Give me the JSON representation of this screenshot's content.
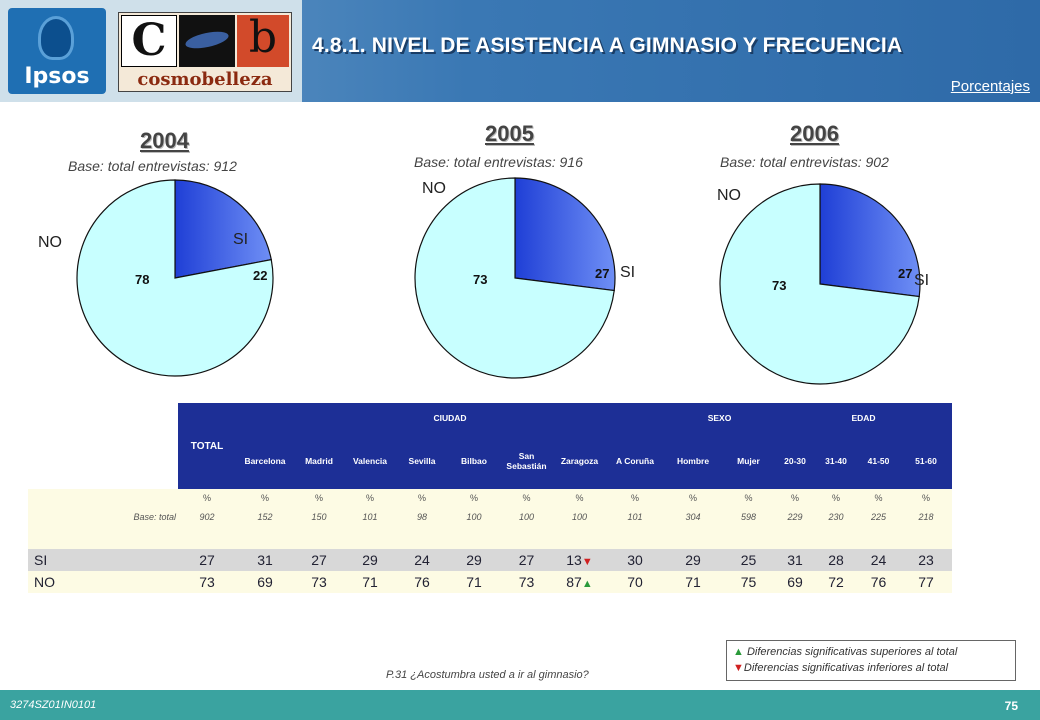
{
  "header": {
    "title": "4.8.1. NIVEL DE ASISTENCIA A GIMNASIO Y FRECUENCIA",
    "unit_label": "Porcentajes",
    "logo_ipsos": "Ipsos",
    "logo_cb_c": "C",
    "logo_cb_b": "b",
    "logo_cosmobelleza": "cosmobelleza"
  },
  "chart_data": [
    {
      "type": "pie",
      "title": "2004",
      "subtitle": "Base: total entrevistas: 912",
      "slices": [
        {
          "label": "SI",
          "value": 22,
          "color": "#2f55e8"
        },
        {
          "label": "NO",
          "value": 78,
          "color": "#c8ffff"
        }
      ]
    },
    {
      "type": "pie",
      "title": "2005",
      "subtitle": "Base: total entrevistas: 916",
      "slices": [
        {
          "label": "SI",
          "value": 27,
          "color": "#2f55e8"
        },
        {
          "label": "NO",
          "value": 73,
          "color": "#c8ffff"
        }
      ]
    },
    {
      "type": "pie",
      "title": "2006",
      "subtitle": "Base: total entrevistas: 902",
      "slices": [
        {
          "label": "SI",
          "value": 27,
          "color": "#2f55e8"
        },
        {
          "label": "NO",
          "value": 73,
          "color": "#c8ffff"
        }
      ]
    },
    {
      "type": "table",
      "groups": [
        {
          "label": "TOTAL"
        },
        {
          "label": "CIUDAD"
        },
        {
          "label": "SEXO"
        },
        {
          "label": "EDAD"
        }
      ],
      "columns": [
        "Barcelona",
        "Madrid",
        "Valencia",
        "Sevilla",
        "Bilbao",
        "San Sebastián",
        "Zaragoza",
        "A Coruña",
        "Hombre",
        "Mujer",
        "20-30",
        "31-40",
        "41-50",
        "51-60"
      ],
      "pct_row": [
        "%",
        "%",
        "%",
        "%",
        "%",
        "%",
        "%",
        "%",
        "%",
        "%",
        "%",
        "%",
        "%",
        "%",
        "%"
      ],
      "base_label": "Base: total",
      "base_values": [
        "902",
        "152",
        "150",
        "101",
        "98",
        "100",
        "100",
        "100",
        "101",
        "304",
        "598",
        "229",
        "230",
        "225",
        "218"
      ],
      "rows": [
        {
          "label": "SI",
          "values": [
            "27",
            "31",
            "27",
            "29",
            "24",
            "29",
            "27",
            "13",
            "30",
            "29",
            "25",
            "31",
            "28",
            "24",
            "23"
          ],
          "marks": {
            "7": "down"
          }
        },
        {
          "label": "NO",
          "values": [
            "73",
            "69",
            "73",
            "71",
            "76",
            "71",
            "73",
            "87",
            "70",
            "71",
            "75",
            "69",
            "72",
            "76",
            "77"
          ],
          "marks": {
            "7": "up"
          }
        }
      ]
    }
  ],
  "question": "P.31  ¿Acostumbra usted a ir al gimnasio?",
  "legend": {
    "up_text": "Diferencias significativas superiores al total",
    "down_text": "Diferencias significativas inferiores al total",
    "up_color": "#2a9a3a",
    "down_color": "#d02020"
  },
  "footer": {
    "code": "3274SZ01IN0101",
    "page": "75"
  }
}
